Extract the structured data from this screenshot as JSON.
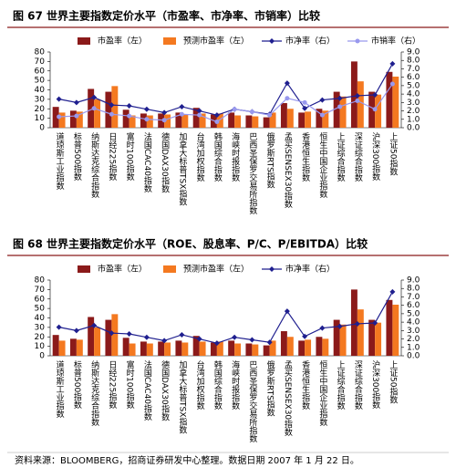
{
  "chart_data": [
    {
      "type": "bar",
      "title": "图 67 世界主要指数定价水平（市盈率、市净率、市销率）比较",
      "categories": [
        "道琼斯工业指数",
        "标普500指数",
        "纳斯达克综合指数",
        "日经225指数",
        "富时100指数",
        "法国CAC40指数",
        "德国DAX30指数",
        "加拿大标普TSX指数",
        "台湾加权指数",
        "韩国综合指数",
        "海峡时报指数",
        "巴西圣保罗交易所指数",
        "俄罗斯RTS指数",
        "孟买SENSEX30指数",
        "香港恒生指数",
        "恒生中国企业指数",
        "上证综合指数",
        "深证综合指数",
        "沪深300指数",
        "上证50指数"
      ],
      "series": [
        {
          "name": "市盈率（左）",
          "type": "bar",
          "color": "#8b1a1a",
          "values": [
            22,
            18,
            41,
            38,
            19,
            15,
            15,
            16,
            21,
            14,
            16,
            13,
            11,
            26,
            16,
            20,
            38,
            70,
            38,
            59
          ]
        },
        {
          "name": "预测市盈率（左）",
          "type": "bar",
          "color": "#f47920",
          "values": [
            16,
            17,
            30,
            44,
            13,
            13,
            14,
            14,
            15,
            15,
            13,
            12,
            16,
            20,
            17,
            18,
            33,
            49,
            35,
            54
          ]
        },
        {
          "name": "市净率（右）",
          "type": "line",
          "marker": "diamond",
          "axis": "y2",
          "color": "#1f1f8f",
          "values": [
            3.4,
            3.0,
            3.6,
            2.7,
            2.6,
            2.2,
            1.8,
            2.5,
            2.0,
            1.5,
            2.2,
            1.9,
            1.6,
            5.3,
            2.3,
            3.3,
            3.5,
            3.8,
            3.9,
            7.6
          ]
        },
        {
          "name": "市销率（右）",
          "type": "line",
          "marker": "circle",
          "axis": "y2",
          "color": "#9999ee",
          "values": [
            1.3,
            1.4,
            2.3,
            1.6,
            1.4,
            1.0,
            0.9,
            1.6,
            1.5,
            0.7,
            2.2,
            1.9,
            1.5,
            3.5,
            3.0,
            1.5,
            2.5,
            3.2,
            2.2,
            5.2
          ]
        }
      ],
      "ylim": [
        0,
        80
      ],
      "yticks": [
        0,
        10,
        20,
        30,
        40,
        50,
        60,
        70,
        80
      ],
      "y2lim": [
        0,
        9
      ],
      "y2ticks": [
        {
          "value": 0,
          "label": "0.0"
        },
        {
          "value": 1,
          "label": "1.0"
        },
        {
          "value": 2,
          "label": "2.0"
        },
        {
          "value": 3,
          "label": "3.0"
        },
        {
          "value": 4,
          "label": "4.0"
        },
        {
          "value": 5,
          "label": "5.0"
        },
        {
          "value": 6,
          "label": "6.0"
        },
        {
          "value": 7,
          "label": "7.0"
        },
        {
          "value": 8,
          "label": "8.0"
        },
        {
          "value": 9,
          "label": "9.0"
        }
      ]
    },
    {
      "type": "bar",
      "title": "图 68 世界主要指数定价水平（ROE、股息率、P/C、P/EBITDA）比较",
      "categories": [
        "道琼斯工业指数",
        "标普500指数",
        "纳斯达克综合指数",
        "日经225指数",
        "富时100指数",
        "法国CAC40指数",
        "德国DAX30指数",
        "加拿大标普TSX指数",
        "台湾加权指数",
        "韩国综合指数",
        "海峡时报指数",
        "巴西圣保罗交易所指数",
        "俄罗斯RTS指数",
        "孟买SENSEX30指数",
        "香港恒生指数",
        "恒生中国企业指数",
        "上证综合指数",
        "深证综合指数",
        "沪深300指数",
        "上证50指数"
      ],
      "series": [
        {
          "name": "市盈率（左）",
          "type": "bar",
          "color": "#8b1a1a",
          "values": [
            22,
            18,
            41,
            38,
            19,
            15,
            15,
            16,
            21,
            14,
            16,
            13,
            11,
            26,
            16,
            20,
            38,
            70,
            38,
            59
          ]
        },
        {
          "name": "预测市盈率（左）",
          "type": "bar",
          "color": "#f47920",
          "values": [
            16,
            17,
            30,
            44,
            13,
            13,
            14,
            14,
            15,
            15,
            13,
            12,
            16,
            20,
            17,
            18,
            33,
            49,
            35,
            54
          ]
        },
        {
          "name": "市净率（右）",
          "type": "line",
          "marker": "diamond",
          "axis": "y2",
          "color": "#1f1f8f",
          "values": [
            3.4,
            3.0,
            3.6,
            2.7,
            2.6,
            2.2,
            1.8,
            2.5,
            2.0,
            1.5,
            2.2,
            1.9,
            1.6,
            5.3,
            2.3,
            3.3,
            3.5,
            3.8,
            3.9,
            7.6
          ]
        }
      ],
      "ylim": [
        0,
        80
      ],
      "yticks": [
        0,
        10,
        20,
        30,
        40,
        50,
        60,
        70,
        80
      ],
      "y2lim": [
        0,
        9
      ],
      "y2ticks": [
        {
          "value": 0,
          "label": "0.0"
        },
        {
          "value": 1,
          "label": "1.0"
        },
        {
          "value": 2,
          "label": "2.0"
        },
        {
          "value": 3,
          "label": "3.0"
        },
        {
          "value": 4,
          "label": "4.0"
        },
        {
          "value": 5,
          "label": "5.0"
        },
        {
          "value": 6,
          "label": "6.0"
        },
        {
          "value": 7,
          "label": "7.0"
        },
        {
          "value": 8,
          "label": "8.0"
        },
        {
          "value": 9,
          "label": "9.0"
        }
      ]
    }
  ],
  "footer": "资料来源：BLOOMBERG，招商证券研发中心整理。数据日期 2007 年 1 月 22 日。"
}
